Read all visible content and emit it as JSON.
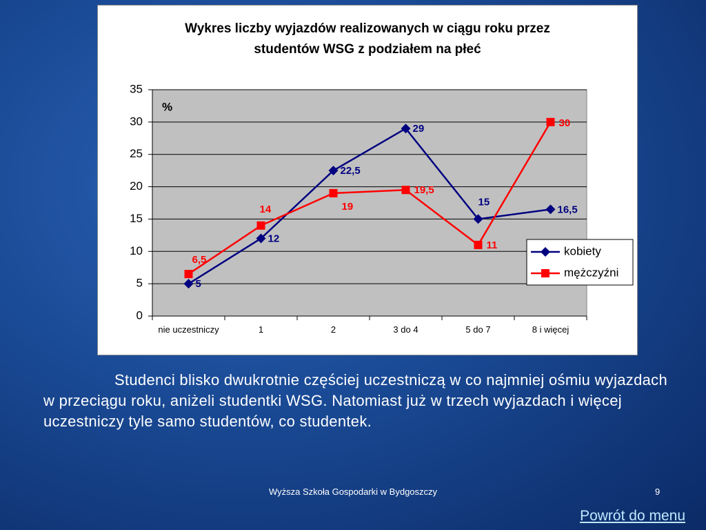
{
  "chart_data": {
    "type": "line",
    "title": "Wykres liczby wyjazdów realizowanych w ciągu roku przez studentów WSG z podziałem na płeć",
    "y_label": "%",
    "categories": [
      "nie uczestniczy",
      "1",
      "2",
      "3 do 4",
      "5 do 7",
      "8 i więcej"
    ],
    "series": [
      {
        "name": "kobiety",
        "color": "#000080",
        "marker": "diamond",
        "values": [
          5,
          12,
          22.5,
          29,
          15,
          16.5
        ],
        "value_labels": [
          "5",
          "12",
          "22,5",
          "29",
          "15",
          "16,5"
        ]
      },
      {
        "name": "mężczyźni",
        "color": "#ff0000",
        "marker": "square",
        "values": [
          6.5,
          14,
          19,
          19.5,
          11,
          30
        ],
        "value_labels": [
          "6,5",
          "14",
          "19",
          "19,5",
          "11",
          "30"
        ]
      }
    ],
    "ylim": [
      0,
      35
    ],
    "yticks": [
      0,
      5,
      10,
      15,
      20,
      25,
      30,
      35
    ],
    "grid": true,
    "legend": "right"
  },
  "body_text": "Studenci blisko dwukrotnie częściej uczestniczą w co najmniej ośmiu wyjazdach w przeciągu roku, aniżeli studentki WSG. Natomiast już w trzech wyjazdach i więcej uczestniczy tyle samo studentów, co studentek.",
  "footer": "Wyższa Szkoła Gospodarki w Bydgoszczy",
  "page_number": "9",
  "link": "Powrót do menu"
}
